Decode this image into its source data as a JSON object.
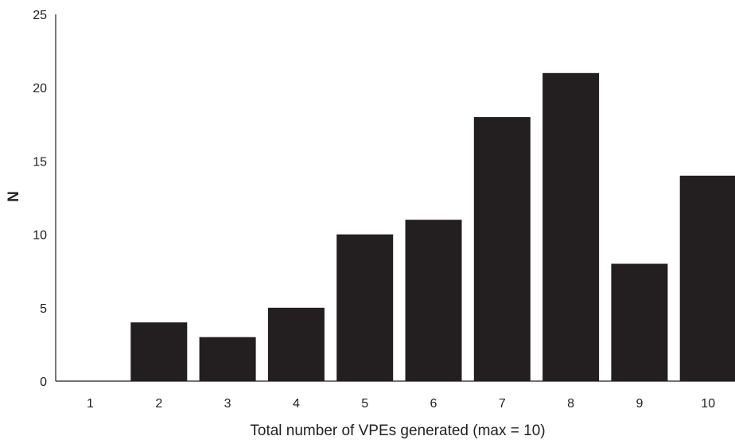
{
  "chart_data": {
    "type": "bar",
    "title": "",
    "xlabel": "Total number of VPEs generated (max = 10)",
    "ylabel": "N",
    "categories": [
      "1",
      "2",
      "3",
      "4",
      "5",
      "6",
      "7",
      "8",
      "9",
      "10"
    ],
    "values": [
      0,
      4,
      3,
      5,
      10,
      11,
      18,
      21,
      8,
      14
    ],
    "ylim": [
      0,
      25
    ],
    "yticks": [
      0,
      5,
      10,
      15,
      20,
      25
    ],
    "grid": false,
    "legend": "none",
    "bar_color": "#231f20",
    "axis_color": "#231f20"
  }
}
